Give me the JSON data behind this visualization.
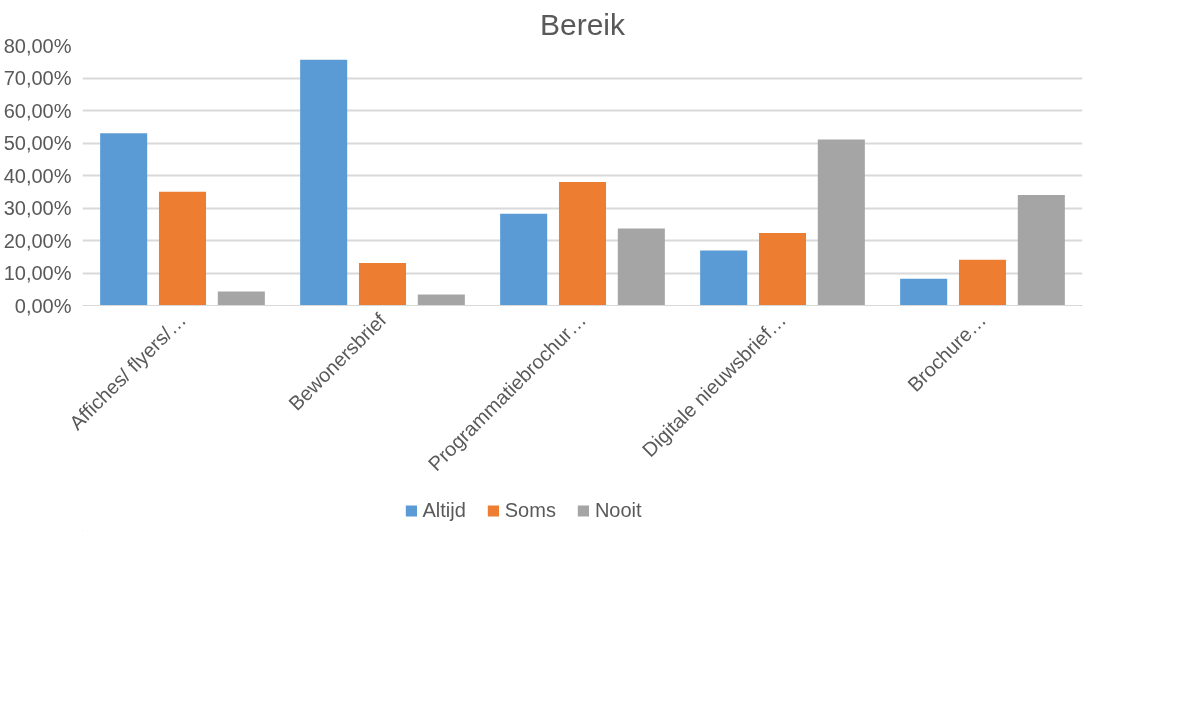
{
  "chart_data": {
    "type": "bar",
    "title": "Bereik",
    "categories": [
      "Affiches/ flyers/…",
      "Bewonersbrief",
      "Programmatiebrochur…",
      "Digitale nieuwsbrief…",
      "Brochure…"
    ],
    "series": [
      {
        "name": "Altijd",
        "color": "#5b9bd5",
        "values": [
          53.0,
          75.6,
          28.2,
          16.9,
          8.2
        ]
      },
      {
        "name": "Soms",
        "color": "#ed7d31",
        "values": [
          35.0,
          13.1,
          38.0,
          22.3,
          14.1
        ]
      },
      {
        "name": "Nooit",
        "color": "#a5a5a5",
        "values": [
          4.3,
          3.4,
          23.7,
          51.1,
          34.0
        ]
      }
    ],
    "ylim": [
      0,
      80
    ],
    "yticks": [
      {
        "value": 0,
        "label": "0,00%"
      },
      {
        "value": 10,
        "label": "10,00%"
      },
      {
        "value": 20,
        "label": "20,00%"
      },
      {
        "value": 30,
        "label": "30,00%"
      },
      {
        "value": 40,
        "label": "40,00%"
      },
      {
        "value": 50,
        "label": "50,00%"
      },
      {
        "value": 60,
        "label": "60,00%"
      },
      {
        "value": 70,
        "label": "70,00%"
      },
      {
        "value": 80,
        "label": "80,00%"
      }
    ],
    "grid": "y",
    "legend": "bottom"
  }
}
